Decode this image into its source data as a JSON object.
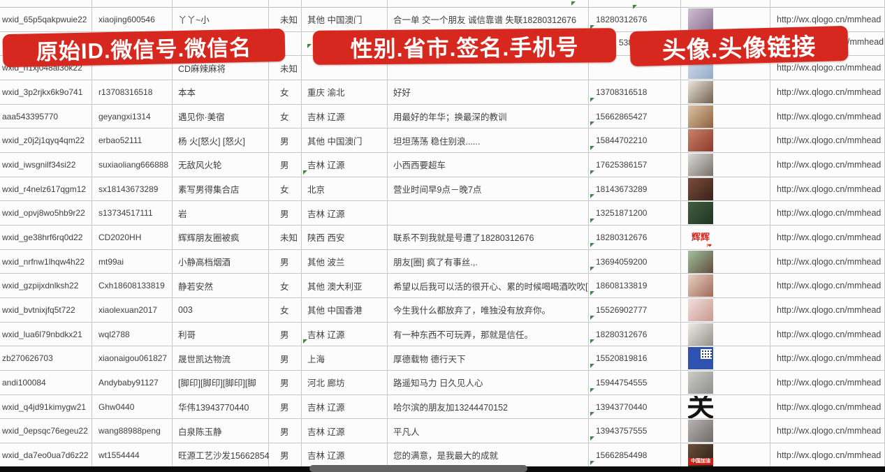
{
  "banners": {
    "left_label": "原始ID.微信号.微信名",
    "middle_label": "性别.省市.签名.手机号",
    "right_label": "头像.头像链接",
    "color": "#d6281e"
  },
  "fragments": {
    "row2_phone_tail": "5386",
    "row2_url_tail": "/mmhead"
  },
  "avatar_url_common": "http://wx.qlogo.cn/mmhead",
  "rows": [
    {
      "id": "wxid_65p5qakpwuie22",
      "account": "xiaojing600546",
      "name": "丫丫~小",
      "gender": "未知",
      "region": "其他 中国澳门",
      "signature": "合一单 交一个朋友 诚信靠谱 失联18280312676",
      "phone": "18280312676",
      "url": "http://wx.qlogo.cn/mmhead",
      "avatar": {
        "type": "photo",
        "desc": "girl-selfie-purple",
        "c1": "#cfc0d2",
        "c2": "#8b6f90"
      }
    },
    {
      "id": "",
      "account": "",
      "name": "",
      "gender": "",
      "region": "",
      "signature": "",
      "phone": "",
      "url": "",
      "avatar": null
    },
    {
      "id": "wxid_h1xj048al3ok22",
      "account": "",
      "name": "CD麻辣麻将",
      "gender": "未知",
      "region": "",
      "signature": "",
      "phone": "",
      "url": "http://wx.qlogo.cn/mmhead",
      "avatar": {
        "type": "photo",
        "desc": "portrait-light-blue",
        "c1": "#d4e0ec",
        "c2": "#93aac6"
      }
    },
    {
      "id": "wxid_3p2rjkx6k9o741",
      "account": "r13708316518",
      "name": "本本",
      "gender": "女",
      "region": "重庆 渝北",
      "signature": "好好",
      "phone": "13708316518",
      "url": "http://wx.qlogo.cn/mmhead",
      "avatar": {
        "type": "photo",
        "desc": "woman-white-dress",
        "c1": "#eae4dc",
        "c2": "#70604f"
      }
    },
    {
      "id": "aaa543395770",
      "account": "geyangxi1314",
      "name": "遇见你·美宿",
      "gender": "女",
      "region": "吉林 辽源",
      "signature": "用最好的年华；换最深的教训",
      "phone": "15662865427",
      "url": "http://wx.qlogo.cn/mmhead",
      "avatar": {
        "type": "photo",
        "desc": "dried-flowers-tan",
        "c1": "#dcc3a6",
        "c2": "#8e613d"
      }
    },
    {
      "id": "wxid_z0j2j1qyq4qm22",
      "account": "erbao52111",
      "name": "杨 火[怒火] [怒火]",
      "gender": "男",
      "region": "其他 中国澳门",
      "signature": "坦坦荡荡 稳住别浪......",
      "phone": "15844702210",
      "url": "http://wx.qlogo.cn/mmhead",
      "avatar": {
        "type": "photo",
        "desc": "red-group-photo",
        "c1": "#c8836c",
        "c2": "#8e392a"
      }
    },
    {
      "id": "wxid_iwsgnilf34si22",
      "account": "suxiaoliang666888",
      "name": "无敌风火轮",
      "gender": "男",
      "region": "吉林 辽源",
      "signature": "小西西要超车",
      "phone": "17625386157",
      "url": "http://wx.qlogo.cn/mmhead",
      "avatar": {
        "type": "photo",
        "desc": "boy-in-car-gray",
        "c1": "#dadad8",
        "c2": "#787068"
      },
      "region_mark": true
    },
    {
      "id": "wxid_r4nelz617qgm12",
      "account": "sx18143673289",
      "name": "素写男得集合店",
      "gender": "女",
      "region": "北京",
      "signature": "营业时间早9点－晚7点",
      "phone": "18143673289",
      "url": "http://wx.qlogo.cn/mmhead",
      "avatar": {
        "type": "photo",
        "desc": "dark-storefront",
        "c1": "#7c4c3b",
        "c2": "#38221a"
      }
    },
    {
      "id": "wxid_opvj8wo5hb9r22",
      "account": "s13734517111",
      "name": "岩",
      "gender": "男",
      "region": "吉林 辽源",
      "signature": "",
      "phone": "13251871200",
      "url": "http://wx.qlogo.cn/mmhead",
      "avatar": {
        "type": "photo",
        "desc": "dark-green-road",
        "c1": "#41603f",
        "c2": "#203423"
      }
    },
    {
      "id": "wxid_ge38hrf6rq0d22",
      "account": "CD2020HH",
      "name": "辉辉朋友圈被疯",
      "gender": "未知",
      "region": "陕西 西安",
      "signature": "联系不到我就是号遭了18280312676",
      "phone": "18280312676",
      "url": "http://wx.qlogo.cn/mmhead",
      "avatar": {
        "type": "text",
        "desc": "red-text-on-white",
        "main": "辉辉",
        "sub": "I❤",
        "color": "#d5281e",
        "bg": "#ffffff"
      }
    },
    {
      "id": "wxid_nrfnw1lhqw4h22",
      "account": "mt99ai",
      "name": "小静高档烟酒",
      "gender": "男",
      "region": "其他 波兰",
      "signature": "朋友[圈] 疯了有事丝.,.",
      "phone": "13694059200",
      "url": "http://wx.qlogo.cn/mmhead",
      "avatar": {
        "type": "photo",
        "desc": "woman-sunglasses-green",
        "c1": "#a0c29c",
        "c2": "#604c3e"
      }
    },
    {
      "id": "wxid_gzpijxdnlksh22",
      "account": "Cxh18608133819",
      "name": "静若安然",
      "gender": "女",
      "region": "其他 澳大利亚",
      "signature": "希望以后我可以活的很开心、累的时候喝喝酒吹吹[",
      "phone": "18608133819",
      "url": "http://wx.qlogo.cn/mmhead",
      "avatar": {
        "type": "photo",
        "desc": "woman-portrait-warm",
        "c1": "#e8d0c5",
        "c2": "#a06b58"
      }
    },
    {
      "id": "wxid_bvtnixjfq5t722",
      "account": "xiaolexuan2017",
      "name": "003",
      "gender": "女",
      "region": "其他 中国香港",
      "signature": "今生我什么都放弃了，唯独没有放弃你。",
      "phone": "15526902777",
      "url": "http://wx.qlogo.cn/mmhead",
      "avatar": {
        "type": "photo",
        "desc": "woman-portrait-pink",
        "c1": "#f1dedb",
        "c2": "#c8998f"
      }
    },
    {
      "id": "wxid_lua6l79nbdkx21",
      "account": "wql2788",
      "name": "利哥",
      "gender": "男",
      "region": "吉林 辽源",
      "signature": "有一种东西不可玩弄，那就是信任。",
      "phone": "18280312676",
      "url": "http://wx.qlogo.cn/mmhead",
      "avatar": {
        "type": "photo",
        "desc": "man-white-hood",
        "c1": "#edebe7",
        "c2": "#97908a"
      },
      "region_mark": true
    },
    {
      "id": "zb270626703",
      "account": "xiaonaigou061827",
      "name": "晟世凯达物流",
      "gender": "男",
      "region": "上海",
      "signature": "厚德载物 德行天下",
      "phone": "15520819816",
      "url": "http://wx.qlogo.cn/mmhead",
      "avatar": {
        "type": "qr",
        "desc": "blue-with-qr-code",
        "c1": "#2f52b0"
      }
    },
    {
      "id": "andi100084",
      "account": "Andybaby91127",
      "name": "[脚印][脚印][脚印][脚",
      "gender": "男",
      "region": "河北 廊坊",
      "signature": "路遥知马力 日久见人心",
      "phone": "15944754555",
      "url": "http://wx.qlogo.cn/mmhead",
      "avatar": {
        "type": "photo",
        "desc": "gray-street-people",
        "c1": "#cbcbc9",
        "c2": "#8f8f8b"
      }
    },
    {
      "id": "wxid_q4jd91kimygw21",
      "account": "Ghw0440",
      "name": "华伟13943770440",
      "gender": "男",
      "region": "吉林 辽源",
      "signature": "哈尔滨的朋友加13244470152",
      "phone": "13943770440",
      "url": "http://wx.qlogo.cn/mmhead",
      "avatar": {
        "type": "text",
        "desc": "calligraphy-guan",
        "main": "关",
        "color": "#141414",
        "bg": "#ffffff",
        "big": true
      }
    },
    {
      "id": "wxid_0epsqc76egeu22",
      "account": "wang88988peng",
      "name": "白泉陈玉静",
      "gender": "男",
      "region": "吉林 辽源",
      "signature": "平凡人",
      "phone": "13943757555",
      "url": "http://wx.qlogo.cn/mmhead",
      "avatar": {
        "type": "photo",
        "desc": "gray-person",
        "c1": "#b7b5b2",
        "c2": "#6f6b67"
      }
    },
    {
      "id": "wxid_da7eo0ua7d6z22",
      "account": "wt1554444",
      "name": "旺源工艺沙发15662854",
      "gender": "男",
      "region": "吉林 辽源",
      "signature": "您的满意，是我最大的成就",
      "phone": "15662854498",
      "url": "http://wx.qlogo.cn/mmhead",
      "avatar": {
        "type": "photo-band",
        "desc": "dark-photo-china-banner",
        "c1": "#6b4f3c",
        "c2": "#2c1d15",
        "band": "中国加油",
        "band_color": "#cf1f15"
      }
    }
  ]
}
